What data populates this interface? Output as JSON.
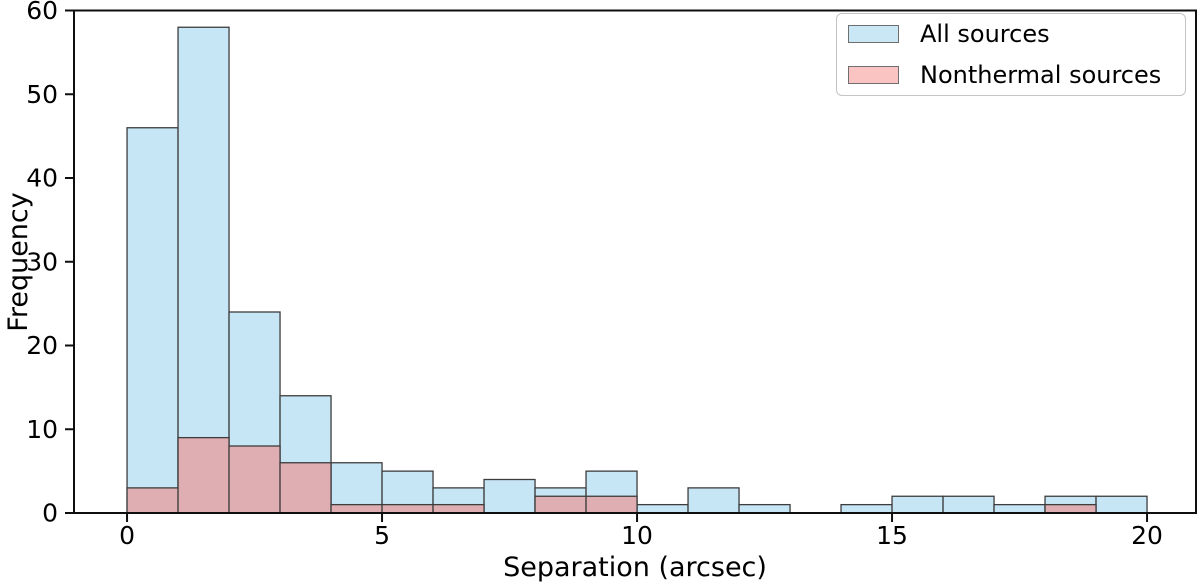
{
  "figure": {
    "background": "#ffffff",
    "spine_color": "#0f0f0f"
  },
  "chart_data": {
    "type": "bar",
    "subtype": "overlaid-histogram",
    "title": "",
    "xlabel": "Separation (arcsec)",
    "ylabel": "Frequency",
    "bin_start": 0,
    "bin_width": 1,
    "n_bins": 20,
    "xlim": [
      -1.04,
      20.96
    ],
    "ylim": [
      0,
      60
    ],
    "x_ticks": [
      0,
      5,
      10,
      15,
      20
    ],
    "y_ticks": [
      0,
      10,
      20,
      30,
      40,
      50,
      60
    ],
    "grid": false,
    "legend_position": "upper right",
    "series": [
      {
        "name": "All sources",
        "values": [
          46,
          58,
          24,
          14,
          6,
          5,
          3,
          4,
          3,
          5,
          1,
          3,
          1,
          0,
          1,
          2,
          2,
          1,
          2,
          2
        ],
        "fill": "#c6e6f5",
        "legend_fill": "#c9e7f5",
        "edge": "#3d3d3d"
      },
      {
        "name": "Nonthermal sources",
        "values": [
          3,
          9,
          8,
          6,
          1,
          1,
          1,
          0,
          2,
          2,
          0,
          0,
          0,
          0,
          0,
          0,
          0,
          0,
          1,
          0
        ],
        "fill": "#dfaeb2",
        "legend_fill": "#fac4c2",
        "edge": "#3d3d3d"
      }
    ]
  }
}
